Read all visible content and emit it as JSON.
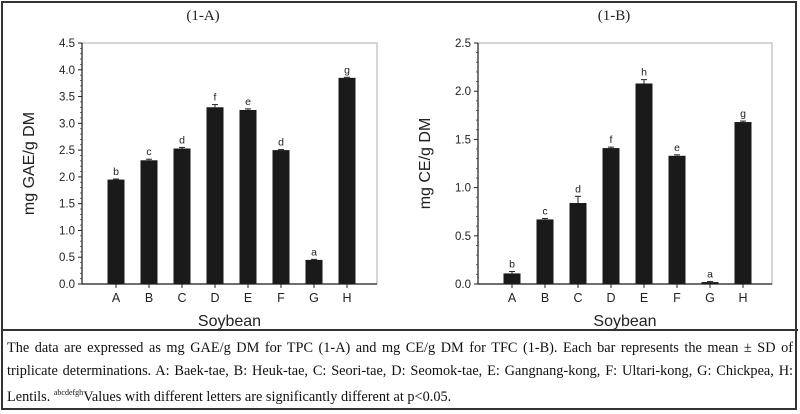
{
  "chart_data": [
    {
      "type": "bar",
      "title": "(1-A)",
      "xlabel": "Soybean",
      "ylabel": "mg GAE/g DM",
      "categories": [
        "A",
        "B",
        "C",
        "D",
        "E",
        "F",
        "G",
        "H"
      ],
      "values": [
        1.95,
        2.31,
        2.53,
        3.3,
        3.25,
        2.5,
        0.45,
        3.85
      ],
      "errors": [
        0.01,
        0.02,
        0.02,
        0.05,
        0.02,
        0.01,
        0.01,
        0.01
      ],
      "letters": [
        "b",
        "c",
        "d",
        "f",
        "e",
        "d",
        "a",
        "g"
      ],
      "ylim": [
        0,
        4.5
      ],
      "yticks": [
        "0.0",
        "0.5",
        "1.0",
        "1.5",
        "2.0",
        "2.5",
        "3.0",
        "3.5",
        "4.0",
        "4.5"
      ],
      "bar_color": "#1a1a1a",
      "grid": false
    },
    {
      "type": "bar",
      "title": "(1-B)",
      "xlabel": "Soybean",
      "ylabel": "mg CE/g DM",
      "categories": [
        "A",
        "B",
        "C",
        "D",
        "E",
        "F",
        "G",
        "H"
      ],
      "values": [
        0.11,
        0.67,
        0.84,
        1.41,
        2.08,
        1.33,
        0.02,
        1.68
      ],
      "errors": [
        0.02,
        0.01,
        0.07,
        0.01,
        0.04,
        0.01,
        0.005,
        0.01
      ],
      "letters": [
        "b",
        "c",
        "d",
        "f",
        "h",
        "e",
        "a",
        "g"
      ],
      "ylim": [
        0,
        2.5
      ],
      "yticks": [
        "0.0",
        "0.5",
        "1.0",
        "1.5",
        "2.0",
        "2.5"
      ],
      "bar_color": "#1a1a1a",
      "grid": false
    }
  ],
  "caption": {
    "text_before_sup": "The data are expressed as mg GAE/g DM for TPC (1-A) and mg CE/g DM for TFC (1-B). Each bar represents the mean ± SD of triplicate determinations. A: Baek-tae, B: Heuk-tae, C: Seori-tae, D: Seomok-tae, E: Gangnang-kong, F: Ultari-kong, G: Chickpea, H: Lentils. ",
    "superscript": "abcdefgh",
    "text_after_sup": "Values with different letters are significantly different at p<0.05."
  }
}
